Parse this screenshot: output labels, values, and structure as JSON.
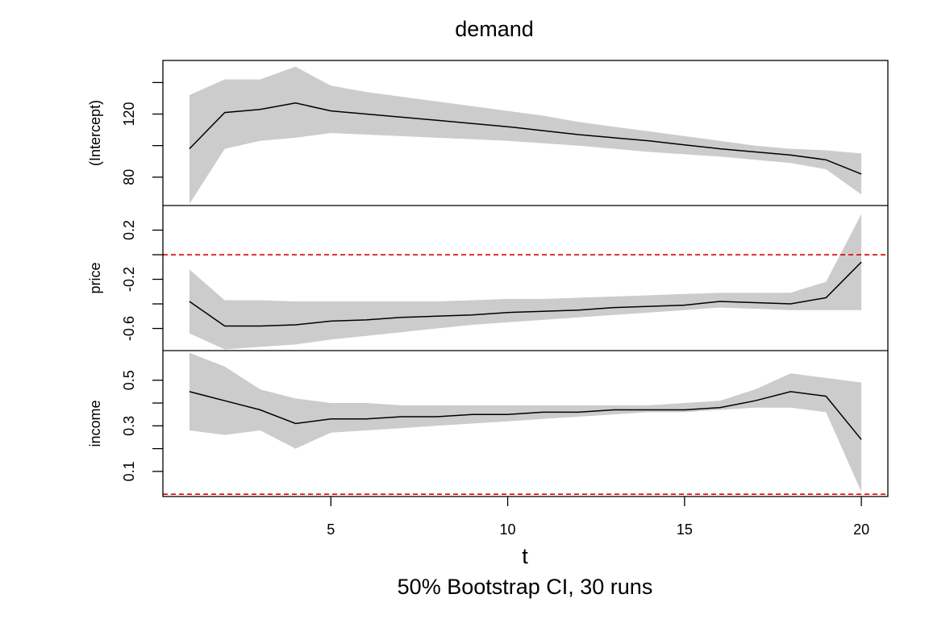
{
  "chart_data": {
    "type": "line",
    "title": "demand",
    "xlabel": "t",
    "subtitle": "50% Bootstrap CI, 30 runs",
    "x": [
      1,
      2,
      3,
      4,
      5,
      6,
      7,
      8,
      9,
      10,
      11,
      12,
      13,
      14,
      15,
      16,
      17,
      18,
      19,
      20
    ],
    "xlim": [
      0.25,
      20.75
    ],
    "xticks": [
      5,
      10,
      15,
      20
    ],
    "colors": {
      "line": "#000000",
      "band": "#cccccc",
      "reference": "#dd0000"
    },
    "panels": [
      {
        "name": "intercept",
        "ylabel": "(Intercept)",
        "ylim": [
          62,
          154
        ],
        "yticks": [
          80,
          100,
          120,
          140
        ],
        "ytick_labels": [
          "80",
          "",
          "120",
          ""
        ],
        "reference_line": null,
        "estimate": [
          98,
          121,
          123,
          127,
          122,
          120,
          118,
          116,
          114,
          112,
          109.5,
          107,
          105,
          103,
          100.5,
          98,
          96,
          94,
          91,
          82
        ],
        "lower": [
          63,
          98,
          103,
          105,
          108,
          107,
          106,
          105,
          104,
          103,
          101.5,
          100,
          98,
          96,
          94.5,
          93,
          91,
          89,
          85,
          69
        ],
        "upper": [
          132,
          142,
          142,
          150,
          138,
          134,
          131,
          128,
          125,
          122,
          119,
          115,
          112,
          109,
          106,
          103,
          100,
          98,
          97,
          95
        ]
      },
      {
        "name": "price",
        "ylabel": "price",
        "ylim": [
          -0.78,
          0.4
        ],
        "yticks": [
          -0.6,
          -0.4,
          -0.2,
          0,
          0.2
        ],
        "ytick_labels": [
          "-0.6",
          "",
          "-0.2",
          "",
          "0.2"
        ],
        "reference_line": 0,
        "estimate": [
          -0.38,
          -0.58,
          -0.58,
          -0.57,
          -0.54,
          -0.53,
          -0.51,
          -0.5,
          -0.49,
          -0.47,
          -0.46,
          -0.45,
          -0.43,
          -0.42,
          -0.41,
          -0.38,
          -0.39,
          -0.4,
          -0.35,
          -0.06
        ],
        "lower": [
          -0.64,
          -0.77,
          -0.75,
          -0.73,
          -0.69,
          -0.66,
          -0.63,
          -0.6,
          -0.57,
          -0.55,
          -0.53,
          -0.51,
          -0.49,
          -0.47,
          -0.45,
          -0.43,
          -0.44,
          -0.45,
          -0.45,
          -0.45
        ],
        "upper": [
          -0.12,
          -0.37,
          -0.37,
          -0.38,
          -0.38,
          -0.38,
          -0.38,
          -0.38,
          -0.37,
          -0.36,
          -0.36,
          -0.35,
          -0.34,
          -0.33,
          -0.32,
          -0.31,
          -0.31,
          -0.31,
          -0.22,
          0.33
        ]
      },
      {
        "name": "income",
        "ylabel": "income",
        "ylim": [
          -0.01,
          0.63
        ],
        "yticks": [
          0.1,
          0.2,
          0.3,
          0.4,
          0.5
        ],
        "ytick_labels": [
          "0.1",
          "",
          "0.3",
          "",
          "0.5"
        ],
        "reference_line": 0,
        "estimate": [
          0.45,
          0.41,
          0.37,
          0.31,
          0.33,
          0.33,
          0.34,
          0.34,
          0.35,
          0.35,
          0.36,
          0.36,
          0.37,
          0.37,
          0.37,
          0.38,
          0.41,
          0.45,
          0.43,
          0.24
        ],
        "lower": [
          0.28,
          0.26,
          0.28,
          0.2,
          0.27,
          0.28,
          0.29,
          0.3,
          0.31,
          0.32,
          0.33,
          0.34,
          0.35,
          0.36,
          0.36,
          0.37,
          0.38,
          0.38,
          0.36,
          0.01
        ],
        "upper": [
          0.62,
          0.56,
          0.46,
          0.42,
          0.4,
          0.4,
          0.39,
          0.39,
          0.39,
          0.39,
          0.39,
          0.39,
          0.39,
          0.39,
          0.4,
          0.41,
          0.46,
          0.53,
          0.51,
          0.49
        ]
      }
    ]
  }
}
